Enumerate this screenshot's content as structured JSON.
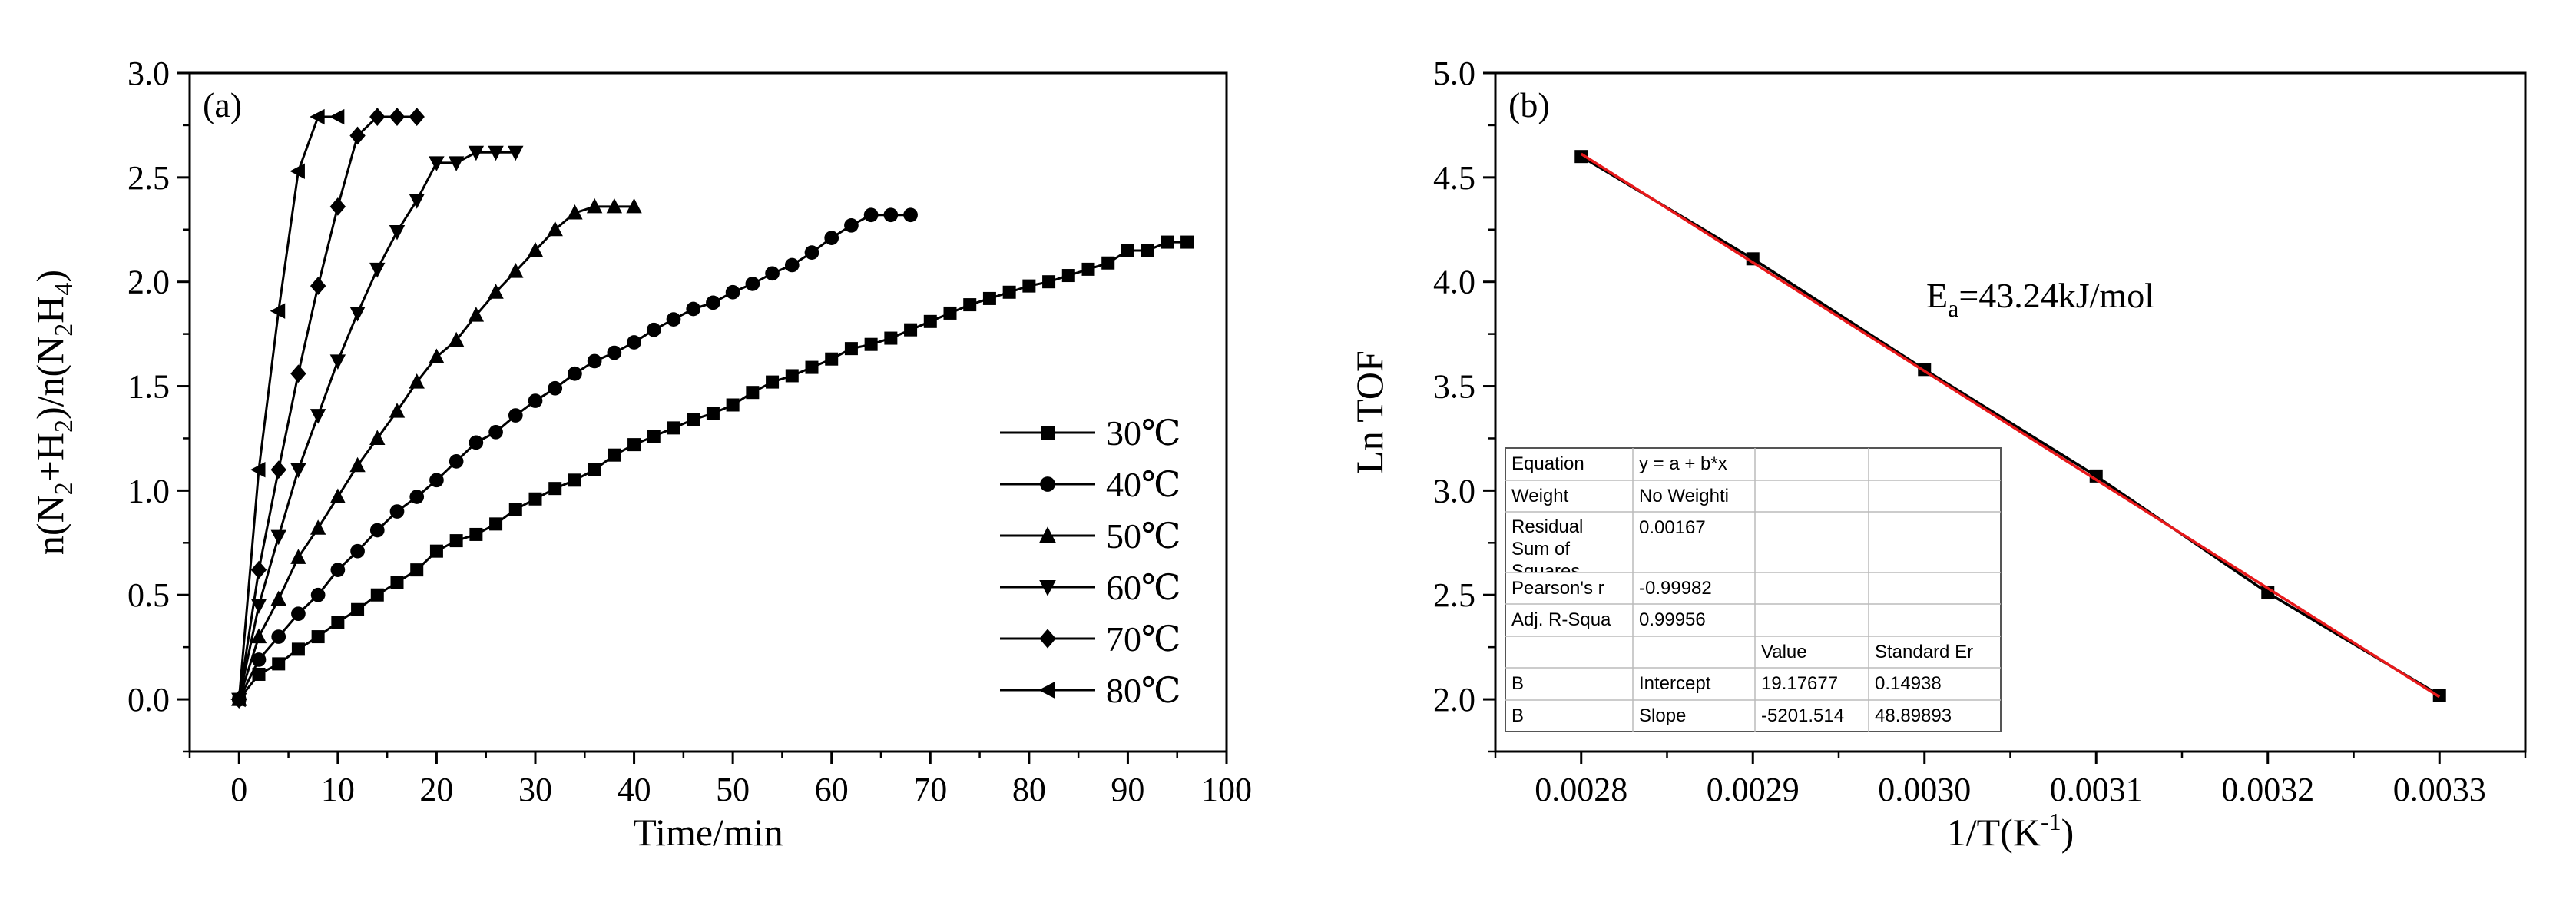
{
  "chart_data": [
    {
      "panel": "(a)",
      "type": "line",
      "xlabel": "Time/min",
      "ylabel_parts": [
        "n(N",
        "2",
        "+H",
        "2",
        ")/n(N",
        "2",
        "H",
        "4",
        ")"
      ],
      "xlim": [
        -5,
        100
      ],
      "ylim": [
        -0.25,
        3.0
      ],
      "xticks": [
        0,
        10,
        20,
        30,
        40,
        50,
        60,
        70,
        80,
        90,
        100
      ],
      "yticks": [
        "0.0",
        "0.5",
        "1.0",
        "1.5",
        "2.0",
        "2.5",
        "3.0"
      ],
      "legend_position": "right-middle",
      "series": [
        {
          "name": "30℃",
          "marker": "square",
          "x": [
            0,
            2,
            4,
            6,
            8,
            10,
            12,
            14,
            16,
            18,
            20,
            22,
            24,
            26,
            28,
            30,
            32,
            34,
            36,
            38,
            40,
            42,
            44,
            46,
            48,
            50,
            52,
            54,
            56,
            58,
            60,
            62,
            64,
            66,
            68,
            70,
            72,
            74,
            76,
            78,
            80,
            82,
            84,
            86,
            88,
            90,
            92,
            94,
            96
          ],
          "y": [
            0,
            0.12,
            0.17,
            0.24,
            0.3,
            0.37,
            0.43,
            0.5,
            0.56,
            0.62,
            0.71,
            0.76,
            0.79,
            0.84,
            0.91,
            0.96,
            1.01,
            1.05,
            1.1,
            1.17,
            1.22,
            1.26,
            1.3,
            1.34,
            1.37,
            1.41,
            1.47,
            1.52,
            1.55,
            1.59,
            1.63,
            1.68,
            1.7,
            1.73,
            1.77,
            1.81,
            1.85,
            1.89,
            1.92,
            1.95,
            1.98,
            2.0,
            2.03,
            2.06,
            2.09,
            2.15,
            2.15,
            2.19,
            2.19
          ]
        },
        {
          "name": "40℃",
          "marker": "circle",
          "x": [
            0,
            2,
            4,
            6,
            8,
            10,
            12,
            14,
            16,
            18,
            20,
            22,
            24,
            26,
            28,
            30,
            32,
            34,
            36,
            38,
            40,
            42,
            44,
            46,
            48,
            50,
            52,
            54,
            56,
            58,
            60,
            62,
            64,
            66,
            68
          ],
          "y": [
            0,
            0.19,
            0.3,
            0.41,
            0.5,
            0.62,
            0.71,
            0.81,
            0.9,
            0.97,
            1.05,
            1.14,
            1.23,
            1.28,
            1.36,
            1.43,
            1.49,
            1.56,
            1.62,
            1.66,
            1.71,
            1.77,
            1.82,
            1.87,
            1.9,
            1.95,
            1.99,
            2.04,
            2.08,
            2.14,
            2.21,
            2.27,
            2.32,
            2.32,
            2.32
          ]
        },
        {
          "name": "50℃",
          "marker": "triangle-up",
          "x": [
            0,
            2,
            4,
            6,
            8,
            10,
            12,
            14,
            16,
            18,
            20,
            22,
            24,
            26,
            28,
            30,
            32,
            34,
            36,
            38,
            40
          ],
          "y": [
            0,
            0.3,
            0.48,
            0.68,
            0.82,
            0.97,
            1.12,
            1.25,
            1.38,
            1.52,
            1.64,
            1.72,
            1.84,
            1.95,
            2.05,
            2.15,
            2.25,
            2.33,
            2.36,
            2.36,
            2.36
          ]
        },
        {
          "name": "60℃",
          "marker": "triangle-down",
          "x": [
            0,
            2,
            4,
            6,
            8,
            10,
            12,
            14,
            16,
            18,
            20,
            22,
            24,
            26,
            28
          ],
          "y": [
            0,
            0.45,
            0.78,
            1.1,
            1.36,
            1.62,
            1.85,
            2.06,
            2.24,
            2.39,
            2.57,
            2.57,
            2.62,
            2.62,
            2.62
          ]
        },
        {
          "name": "70℃",
          "marker": "diamond",
          "x": [
            0,
            2,
            4,
            6,
            8,
            10,
            12,
            14,
            16,
            18
          ],
          "y": [
            0,
            0.62,
            1.1,
            1.56,
            1.98,
            2.36,
            2.7,
            2.79,
            2.79,
            2.79
          ]
        },
        {
          "name": "80℃",
          "marker": "triangle-left",
          "x": [
            0,
            2,
            4,
            6,
            8,
            10
          ],
          "y": [
            0,
            1.1,
            1.86,
            2.53,
            2.79,
            2.79
          ]
        }
      ]
    },
    {
      "panel": "(b)",
      "type": "scatter",
      "xlabel": "1/T(K",
      "xlabel_sup": "-1",
      "xlabel_end": ")",
      "ylabel": "Ln TOF",
      "xlim": [
        0.00275,
        0.00335
      ],
      "ylim": [
        1.75,
        5.0
      ],
      "xticks": [
        "0.0028",
        "0.0029",
        "0.0030",
        "0.0031",
        "0.0032",
        "0.0033"
      ],
      "yticks": [
        "2.0",
        "2.5",
        "3.0",
        "3.5",
        "4.0",
        "4.5",
        "5.0"
      ],
      "annotation": {
        "text": "E",
        "sub": "a",
        "rest": "=43.24kJ/mol"
      },
      "series": [
        {
          "name": "data",
          "marker": "square",
          "color": "#000000",
          "x": [
            0.0028,
            0.0029,
            0.003,
            0.0031,
            0.0032,
            0.0033
          ],
          "y": [
            4.6,
            4.11,
            3.58,
            3.07,
            2.51,
            2.02
          ]
        }
      ],
      "fit": {
        "intercept": 19.17677,
        "slope": -5201.514,
        "color": "#e8191b",
        "x_range": [
          0.0028,
          0.0033
        ]
      },
      "fit_table": {
        "rows": [
          [
            "Equation",
            "y = a + b*x",
            "",
            ""
          ],
          [
            "Weight",
            "No Weighti",
            "",
            ""
          ],
          [
            "Residual Sum of Squares",
            "0.00167",
            "",
            ""
          ],
          [
            "Pearson's r",
            "-0.99982",
            "",
            ""
          ],
          [
            "Adj. R-Squa",
            "0.99956",
            "",
            ""
          ],
          [
            "",
            "",
            "Value",
            "Standard Er"
          ],
          [
            "B",
            "Intercept",
            "19.17677",
            "0.14938"
          ],
          [
            "B",
            "Slope",
            "-5201.514",
            "48.89893"
          ]
        ]
      }
    }
  ]
}
